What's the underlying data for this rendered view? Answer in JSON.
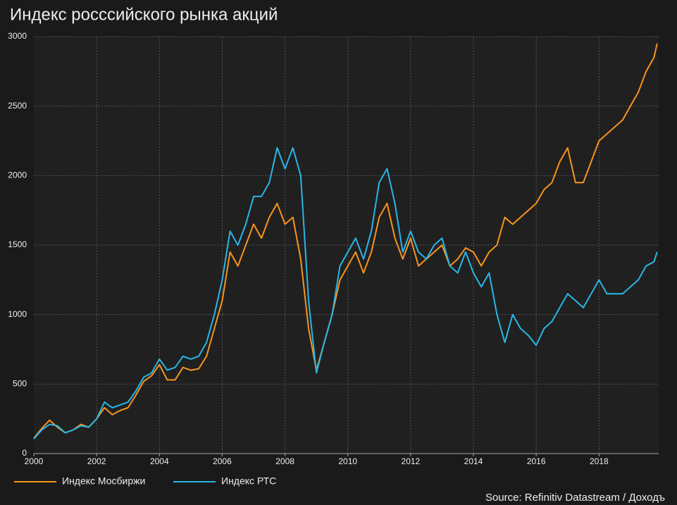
{
  "chart_data": {
    "type": "line",
    "title": "Индекс росссийского рынка акций",
    "source": "Source: Refinitiv Datastream / Доходъ",
    "x": [
      2000,
      2000.25,
      2000.5,
      2000.75,
      2001,
      2001.25,
      2001.5,
      2001.75,
      2002,
      2002.25,
      2002.5,
      2002.75,
      2003,
      2003.25,
      2003.5,
      2003.75,
      2004,
      2004.25,
      2004.5,
      2004.75,
      2005,
      2005.25,
      2005.5,
      2005.75,
      2006,
      2006.25,
      2006.5,
      2006.75,
      2007,
      2007.25,
      2007.5,
      2007.75,
      2008,
      2008.25,
      2008.5,
      2008.75,
      2009,
      2009.25,
      2009.5,
      2009.75,
      2010,
      2010.25,
      2010.5,
      2010.75,
      2011,
      2011.25,
      2011.5,
      2011.75,
      2012,
      2012.25,
      2012.5,
      2012.75,
      2013,
      2013.25,
      2013.5,
      2013.75,
      2014,
      2014.25,
      2014.5,
      2014.75,
      2015,
      2015.25,
      2015.5,
      2015.75,
      2016,
      2016.25,
      2016.5,
      2016.75,
      2017,
      2017.25,
      2017.5,
      2017.75,
      2018,
      2018.25,
      2018.5,
      2018.75,
      2019,
      2019.25,
      2019.5,
      2019.75,
      2019.85
    ],
    "series": [
      {
        "name": "Индекс Мосбиржи",
        "color": "#f7941d",
        "values": [
          110,
          180,
          240,
          190,
          150,
          170,
          210,
          190,
          250,
          330,
          280,
          310,
          330,
          420,
          520,
          560,
          640,
          530,
          530,
          620,
          600,
          610,
          700,
          900,
          1100,
          1450,
          1350,
          1500,
          1650,
          1550,
          1700,
          1800,
          1650,
          1700,
          1400,
          900,
          600,
          800,
          1000,
          1250,
          1350,
          1450,
          1300,
          1450,
          1700,
          1800,
          1550,
          1400,
          1550,
          1350,
          1400,
          1450,
          1500,
          1350,
          1400,
          1480,
          1450,
          1350,
          1450,
          1500,
          1700,
          1650,
          1700,
          1750,
          1800,
          1900,
          1950,
          2100,
          2200,
          1950,
          1950,
          2100,
          2250,
          2300,
          2350,
          2400,
          2500,
          2600,
          2750,
          2850,
          2950
        ]
      },
      {
        "name": "Индекс РТС",
        "color": "#29b6e6",
        "values": [
          105,
          170,
          210,
          200,
          150,
          170,
          200,
          190,
          250,
          370,
          330,
          350,
          370,
          450,
          550,
          580,
          680,
          600,
          620,
          700,
          680,
          700,
          800,
          1000,
          1250,
          1600,
          1500,
          1650,
          1850,
          1850,
          1950,
          2200,
          2050,
          2200,
          2000,
          1100,
          580,
          800,
          1000,
          1350,
          1450,
          1550,
          1400,
          1600,
          1950,
          2050,
          1800,
          1450,
          1600,
          1450,
          1400,
          1500,
          1550,
          1350,
          1300,
          1450,
          1300,
          1200,
          1300,
          1000,
          800,
          1000,
          900,
          850,
          780,
          900,
          950,
          1050,
          1150,
          1100,
          1050,
          1150,
          1250,
          1150,
          1150,
          1150,
          1200,
          1250,
          1350,
          1380,
          1450
        ]
      }
    ],
    "xlim": [
      2000,
      2019.9
    ],
    "ylim": [
      0,
      3000
    ],
    "xticks": [
      2000,
      2002,
      2004,
      2006,
      2008,
      2010,
      2012,
      2014,
      2016,
      2018
    ],
    "yticks": [
      0,
      500,
      1000,
      1500,
      2000,
      2500,
      3000
    ],
    "grid": true
  }
}
